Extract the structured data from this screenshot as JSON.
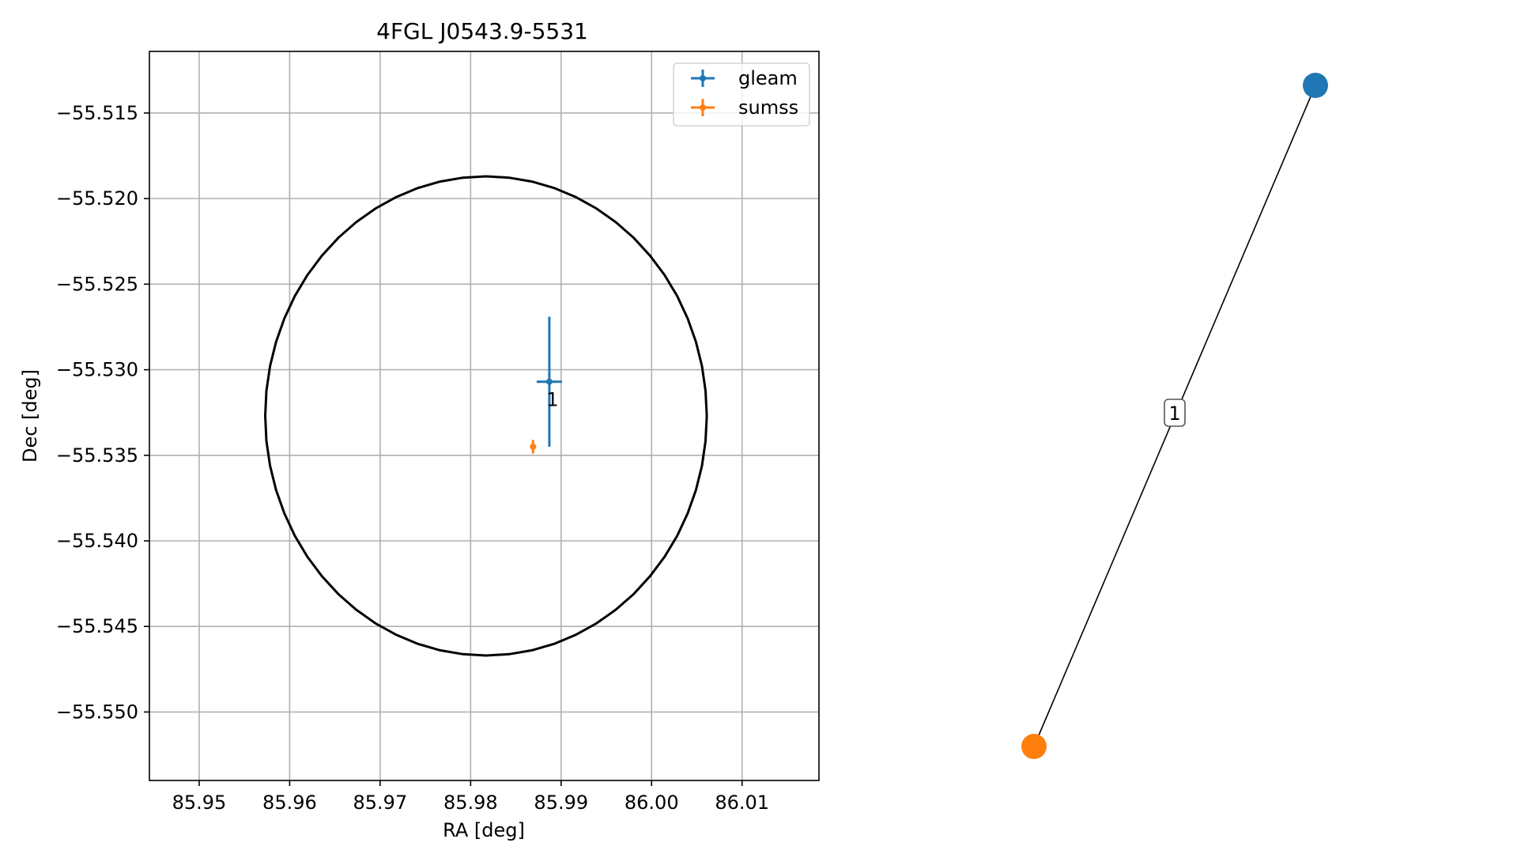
{
  "chart_data": [
    {
      "type": "scatter",
      "title": "4FGL J0543.9-5531",
      "xlabel": "RA [deg]",
      "ylabel": "Dec [deg]",
      "xlim": [
        85.9445,
        86.0185
      ],
      "ylim": [
        -55.554,
        -55.5114
      ],
      "grid": true,
      "xticks": [
        85.95,
        85.96,
        85.97,
        85.98,
        85.99,
        86.0,
        86.01
      ],
      "xtick_labels": [
        "85.95",
        "85.96",
        "85.97",
        "85.98",
        "85.99",
        "86.00",
        "86.01"
      ],
      "yticks": [
        -55.515,
        -55.52,
        -55.525,
        -55.53,
        -55.535,
        -55.54,
        -55.545,
        -55.55
      ],
      "ytick_labels": [
        "−55.515",
        "−55.520",
        "−55.525",
        "−55.530",
        "−55.535",
        "−55.540",
        "−55.545",
        "−55.550"
      ],
      "ellipse": {
        "center": [
          85.9817,
          -55.5327
        ],
        "semi_axis_ra": 0.0244,
        "semi_axis_dec": 0.014,
        "color": "#000000"
      },
      "series": [
        {
          "name": "gleam",
          "color": "#1f77b4",
          "points": [
            {
              "x": 85.9887,
              "y": -55.5307,
              "xerr": 0.0014,
              "yerr": 0.0038,
              "label": "1"
            }
          ]
        },
        {
          "name": "sumss",
          "color": "#ff7f0e",
          "points": [
            {
              "x": 85.9869,
              "y": -55.5345,
              "xerr": 0.0003,
              "yerr": 0.0004
            }
          ]
        }
      ],
      "legend": {
        "position": "top-right",
        "entries": [
          "gleam",
          "sumss"
        ]
      }
    },
    {
      "type": "network",
      "nodes": [
        {
          "id": "gleam",
          "color": "#1f77b4",
          "x": 0.9,
          "y": 0.9
        },
        {
          "id": "sumss",
          "color": "#ff7f0e",
          "x": 0.1,
          "y": 0.1
        }
      ],
      "edges": [
        {
          "source": "gleam",
          "target": "sumss",
          "label": "1"
        }
      ]
    }
  ]
}
